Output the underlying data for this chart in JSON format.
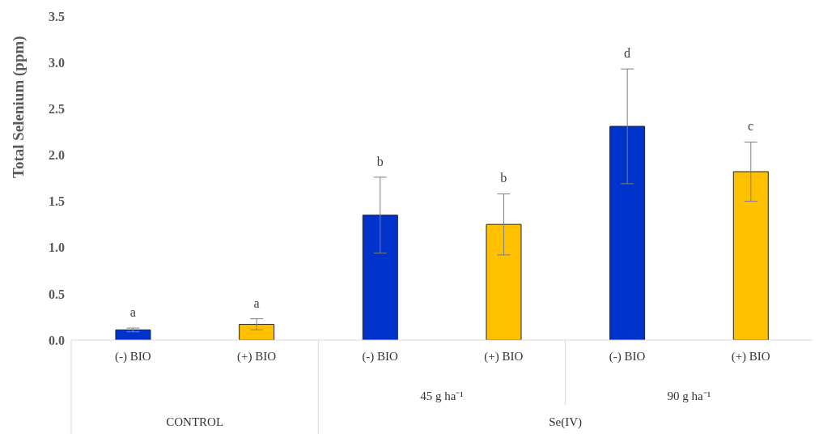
{
  "chart_data": {
    "type": "bar",
    "ylabel": "Total Selenium (ppm)",
    "categories": [
      "(-) BIO",
      "(+) BIO",
      "(-) BIO",
      "(+) BIO",
      "(-) BIO",
      "(+) BIO"
    ],
    "values": [
      0.11,
      0.17,
      1.35,
      1.25,
      2.31,
      1.82
    ],
    "colors": [
      "#0033cc",
      "#ffc000",
      "#0033cc",
      "#ffc000",
      "#0033cc",
      "#ffc000"
    ],
    "errors": [
      0.02,
      0.06,
      0.41,
      0.33,
      0.62,
      0.32
    ],
    "ylim": [
      0,
      3.5
    ],
    "yticks": [
      {
        "value": 0,
        "label": "0.0"
      },
      {
        "value": 0.5,
        "label": "0.5"
      },
      {
        "value": 1,
        "label": "1.0"
      },
      {
        "value": 1.5,
        "label": "1.5"
      },
      {
        "value": 2,
        "label": "2.0"
      },
      {
        "value": 2.5,
        "label": "2.5"
      },
      {
        "value": 3,
        "label": "3.0"
      },
      {
        "value": 3.5,
        "label": "3.5"
      }
    ],
    "grid": false,
    "legend": false,
    "annotations": [
      "a",
      "a",
      "b",
      "b",
      "d",
      "c",
      "45 g ha⁻¹",
      "90 g ha⁻¹",
      "CONTROL",
      "Se(IV)"
    ]
  }
}
